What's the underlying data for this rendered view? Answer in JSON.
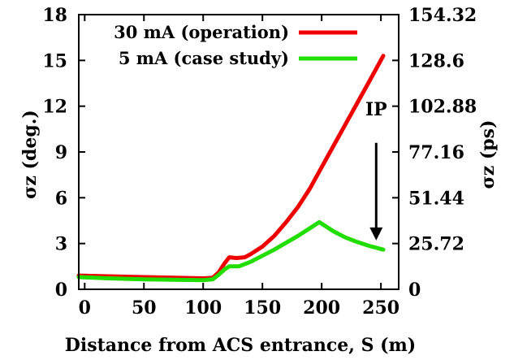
{
  "chart_data": {
    "type": "line",
    "title": "",
    "xlabel": "Distance from ACS entrance, S (m)",
    "ylabel_left": "σz (deg.)",
    "ylabel_right": "σz (ps)",
    "xlim": [
      -5,
      265
    ],
    "ylim": [
      0,
      18
    ],
    "y2lim": [
      0,
      154.32
    ],
    "x_ticks": [
      "0",
      "50",
      "100",
      "150",
      "200",
      "250"
    ],
    "x_tick_values": [
      0,
      50,
      100,
      150,
      200,
      250
    ],
    "y_ticks": [
      "0",
      "3",
      "6",
      "9",
      "12",
      "15",
      "18"
    ],
    "y_tick_values": [
      0,
      3,
      6,
      9,
      12,
      15,
      18
    ],
    "y2_ticks": [
      "0",
      "25.72",
      "51.44",
      "77.16",
      "102.88",
      "128.6",
      "154.32"
    ],
    "y2_tick_values": [
      0,
      25.72,
      51.44,
      77.16,
      102.88,
      128.6,
      154.32
    ],
    "grid": false,
    "legend_position": "top-left",
    "series": [
      {
        "name": "30 mA (operation)",
        "color": "#ee0000",
        "x": [
          -5,
          20,
          50,
          80,
          100,
          108,
          113,
          118,
          122,
          128,
          135,
          140,
          150,
          160,
          170,
          180,
          190,
          200,
          210,
          220,
          230,
          240,
          252
        ],
        "y": [
          0.9,
          0.85,
          0.8,
          0.75,
          0.72,
          0.75,
          1.1,
          1.7,
          2.1,
          2.05,
          2.1,
          2.3,
          2.8,
          3.5,
          4.4,
          5.4,
          6.6,
          8.0,
          9.4,
          10.8,
          12.2,
          13.6,
          15.3
        ]
      },
      {
        "name": "5 mA (case study)",
        "color": "#22dd00",
        "x": [
          -5,
          20,
          50,
          80,
          100,
          108,
          113,
          118,
          122,
          130,
          140,
          150,
          160,
          170,
          180,
          190,
          198,
          210,
          220,
          230,
          240,
          252
        ],
        "y": [
          0.8,
          0.72,
          0.65,
          0.62,
          0.6,
          0.65,
          0.95,
          1.3,
          1.5,
          1.5,
          1.8,
          2.2,
          2.6,
          3.05,
          3.5,
          4.0,
          4.4,
          3.8,
          3.4,
          3.1,
          2.85,
          2.6
        ]
      }
    ],
    "annotations": [
      {
        "text": "IP",
        "x": 246,
        "y_text": 11.4,
        "arrow_from": 9.6,
        "arrow_to": 3.2
      }
    ]
  }
}
